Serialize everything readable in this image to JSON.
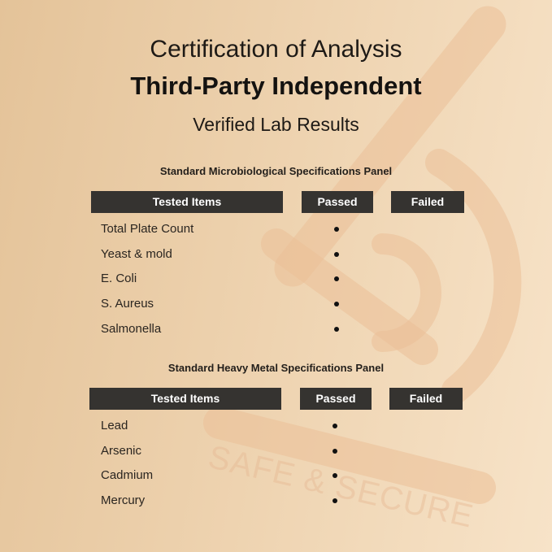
{
  "header": {
    "line1": "Certification of Analysis",
    "line2": "Third-Party Independent",
    "line3": "Verified Lab Results"
  },
  "watermark": "SAFE & SECURE",
  "colors": {
    "header_bar": "#353330",
    "background_left": "#e4c399",
    "background_right": "#f7e3c8"
  },
  "panels": [
    {
      "title": "Standard Microbiological Specifications Panel",
      "columns": [
        "Tested Items",
        "Passed",
        "Failed"
      ],
      "rows": [
        {
          "item": "Total Plate Count",
          "result": "passed"
        },
        {
          "item": "Yeast & mold",
          "result": "passed"
        },
        {
          "item": "E. Coli",
          "result": "passed"
        },
        {
          "item": "S. Aureus",
          "result": "passed"
        },
        {
          "item": "Salmonella",
          "result": "passed"
        }
      ]
    },
    {
      "title": "Standard Heavy Metal Specifications Panel",
      "columns": [
        "Tested Items",
        "Passed",
        "Failed"
      ],
      "rows": [
        {
          "item": "Lead",
          "result": "passed"
        },
        {
          "item": "Arsenic",
          "result": "passed"
        },
        {
          "item": "Cadmium",
          "result": "passed"
        },
        {
          "item": "Mercury",
          "result": "passed"
        }
      ]
    }
  ]
}
